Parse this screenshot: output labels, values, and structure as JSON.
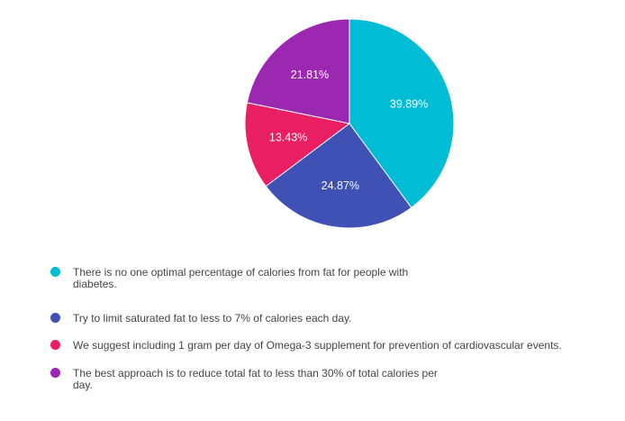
{
  "chart_data": {
    "type": "pie",
    "title": "",
    "legend_position": "bottom",
    "slices": [
      {
        "label": "There is no one optimal percentage of calories from fat for people with diabetes.",
        "value": 39.89,
        "display": "39.89%",
        "color": "#00bcd4"
      },
      {
        "label": "Try to limit saturated fat to less to 7% of calories each day.",
        "value": 24.87,
        "display": "24.87%",
        "color": "#3f51b5"
      },
      {
        "label": "We suggest including 1 gram per day of Omega-3 supplement for prevention of cardiovascular events.",
        "value": 13.43,
        "display": "13.43%",
        "color": "#e91e63"
      },
      {
        "label": "The best approach is to reduce total fat to less than 30% of total calories per day.",
        "value": 21.81,
        "display": "21.81%",
        "color": "#9c27b0"
      }
    ]
  }
}
